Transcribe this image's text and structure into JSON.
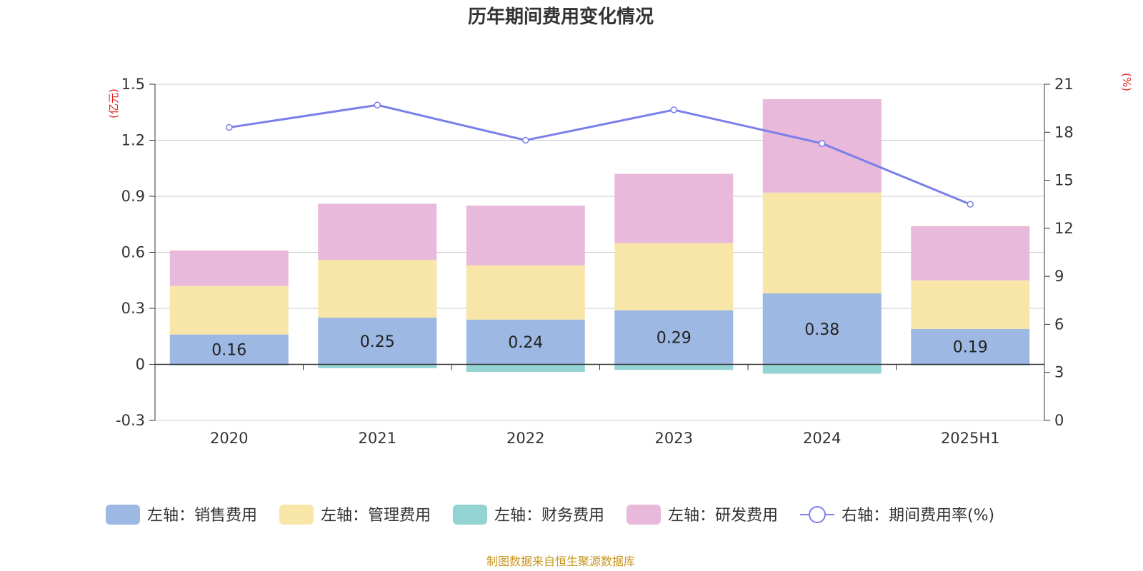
{
  "chart_data": {
    "type": "bar",
    "title": "历年期间费用变化情况",
    "left_axis_unit": "(亿元)",
    "right_axis_unit": "(%)",
    "categories": [
      "2020",
      "2021",
      "2022",
      "2023",
      "2024",
      "2025H1"
    ],
    "ylim_left": [
      -0.3,
      1.5
    ],
    "yticks_left": [
      -0.3,
      0,
      0.3,
      0.6,
      0.9,
      1.2,
      1.5
    ],
    "ylim_right": [
      0,
      21
    ],
    "yticks_right": [
      0,
      3,
      6,
      9,
      12,
      15,
      18,
      21
    ],
    "grid": true,
    "stacked": true,
    "series": [
      {
        "name": "左轴：销售费用",
        "axis": "left",
        "kind": "bar",
        "color": "#9db8e2",
        "values": [
          0.16,
          0.25,
          0.24,
          0.29,
          0.38,
          0.19
        ],
        "labels": [
          "0.16",
          "0.25",
          "0.24",
          "0.29",
          "0.38",
          "0.19"
        ]
      },
      {
        "name": "左轴：管理费用",
        "axis": "left",
        "kind": "bar",
        "color": "#f8e6a8",
        "values": [
          0.26,
          0.31,
          0.29,
          0.36,
          0.54,
          0.26
        ]
      },
      {
        "name": "左轴：财务费用",
        "axis": "left",
        "kind": "bar",
        "color": "#93d3d3",
        "values": [
          -0.005,
          -0.02,
          -0.04,
          -0.03,
          -0.05,
          -0.005
        ]
      },
      {
        "name": "左轴：研发费用",
        "axis": "left",
        "kind": "bar",
        "color": "#e8b9da",
        "values": [
          0.19,
          0.3,
          0.32,
          0.37,
          0.5,
          0.29
        ]
      },
      {
        "name": "右轴：期间费用率(%)",
        "axis": "right",
        "kind": "line",
        "color": "#7b7fea",
        "values": [
          18.3,
          19.7,
          17.5,
          19.4,
          17.3,
          13.5
        ]
      }
    ],
    "legend_position": "bottom"
  },
  "source": "制图数据来自恒生聚源数据库"
}
